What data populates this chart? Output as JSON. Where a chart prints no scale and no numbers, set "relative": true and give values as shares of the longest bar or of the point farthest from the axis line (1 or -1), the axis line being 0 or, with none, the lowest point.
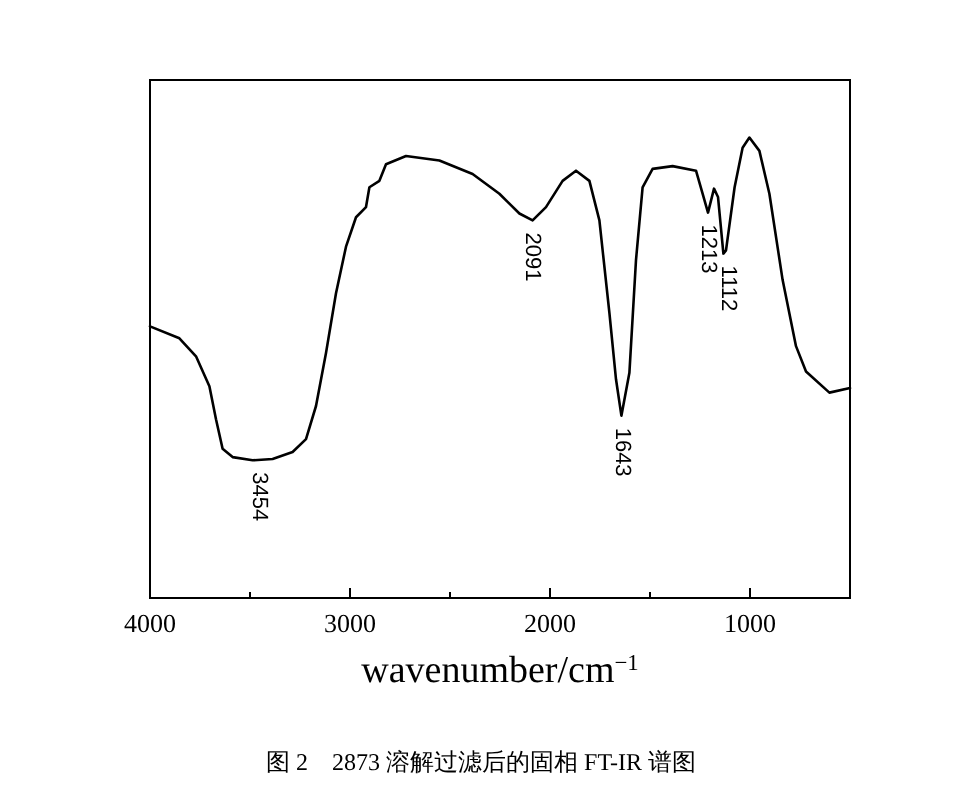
{
  "chart_data": {
    "type": "line",
    "relative": true,
    "xlabel": "wavenumber/cm$^{−1}$",
    "xlim": [
      4000,
      500
    ],
    "xticks": [
      4000,
      3000,
      2000,
      1000,
      {
        "value": 3500,
        "label": null
      },
      {
        "value": 2500,
        "label": null
      },
      {
        "value": 1500,
        "label": null
      }
    ],
    "x": [
      4000,
      3853,
      3770,
      3703,
      3670,
      3637,
      3587,
      3487,
      3387,
      3287,
      3220,
      3170,
      3120,
      3070,
      3020,
      2970,
      2920,
      2903,
      2853,
      2820,
      2720,
      2553,
      2387,
      2253,
      2153,
      2087,
      2020,
      1937,
      1870,
      1803,
      1753,
      1703,
      1670,
      1643,
      1603,
      1570,
      1537,
      1487,
      1387,
      1270,
      1237,
      1210,
      1180,
      1160,
      1133,
      1120,
      1077,
      1037,
      1003,
      953,
      903,
      837,
      770,
      720,
      603,
      500
    ],
    "series": [
      {
        "color": "#000000",
        "values": [
          0.59,
          0.564,
          0.525,
          0.46,
          0.388,
          0.324,
          0.306,
          0.299,
          0.302,
          0.317,
          0.345,
          0.417,
          0.532,
          0.662,
          0.763,
          0.827,
          0.849,
          0.892,
          0.906,
          0.942,
          0.96,
          0.95,
          0.921,
          0.878,
          0.835,
          0.82,
          0.849,
          0.906,
          0.928,
          0.906,
          0.82,
          0.619,
          0.475,
          0.396,
          0.489,
          0.734,
          0.892,
          0.932,
          0.938,
          0.928,
          0.878,
          0.837,
          0.889,
          0.871,
          0.748,
          0.755,
          0.892,
          0.978,
          1.0,
          0.971,
          0.878,
          0.691,
          0.547,
          0.492,
          0.446,
          0.456
        ]
      }
    ],
    "annotations": [
      {
        "text": "3454",
        "x": 3454,
        "y": 0.299
      },
      {
        "text": "2091",
        "x": 2091,
        "y": 0.82
      },
      {
        "text": "1643",
        "x": 1643,
        "y": 0.396
      },
      {
        "text": "1213",
        "x": 1213,
        "y": 0.837
      },
      {
        "text": "1112",
        "x": 1112,
        "y": 0.748
      },
      "图 2    2873 溶解过滤后的固相 FT-IR 谱图"
    ]
  }
}
